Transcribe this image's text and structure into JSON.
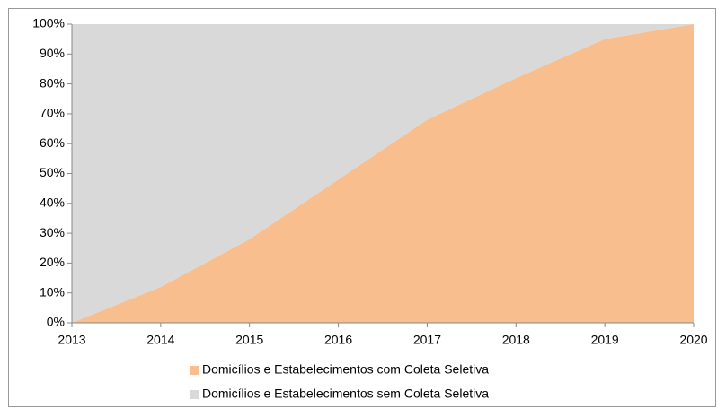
{
  "chart_data": {
    "type": "stacked_area",
    "categories": [
      "2013",
      "2014",
      "2015",
      "2016",
      "2017",
      "2018",
      "2019",
      "2020"
    ],
    "series": [
      {
        "name": "Domicílios e Estabelecimentos com Coleta Seletiva",
        "color": "#f9be8e",
        "values": [
          0,
          12,
          28,
          48,
          68,
          82,
          95,
          100
        ]
      },
      {
        "name": "Domicílios e Estabelecimentos sem Coleta Seletiva",
        "color": "#d9d9d9",
        "values": [
          100,
          88,
          72,
          52,
          32,
          18,
          5,
          0
        ]
      }
    ],
    "ylim": [
      0,
      100
    ],
    "yticks": [
      {
        "value": 0,
        "label": "0%"
      },
      {
        "value": 10,
        "label": "10%"
      },
      {
        "value": 20,
        "label": "20%"
      },
      {
        "value": 30,
        "label": "30%"
      },
      {
        "value": 40,
        "label": "40%"
      },
      {
        "value": 50,
        "label": "50%"
      },
      {
        "value": 60,
        "label": "60%"
      },
      {
        "value": 70,
        "label": "70%"
      },
      {
        "value": 80,
        "label": "80%"
      },
      {
        "value": 90,
        "label": "90%"
      },
      {
        "value": 100,
        "label": "100%"
      }
    ],
    "legend": "bottom"
  }
}
